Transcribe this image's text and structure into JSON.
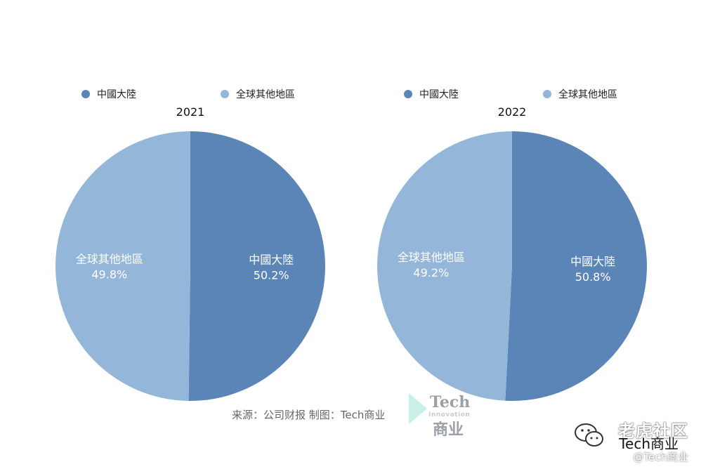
{
  "colors": {
    "mainland": "#5b84b7",
    "rest": "#94b6d8"
  },
  "chart_data": [
    {
      "type": "pie",
      "title": "2021",
      "legend": [
        "中國大陸",
        "全球其他地區"
      ],
      "slices": [
        {
          "label": "中國大陸",
          "value": 50.2,
          "display": "50.2%"
        },
        {
          "label": "全球其他地區",
          "value": 49.8,
          "display": "49.8%"
        }
      ]
    },
    {
      "type": "pie",
      "title": "2022",
      "legend": [
        "中國大陸",
        "全球其他地區"
      ],
      "slices": [
        {
          "label": "中國大陸",
          "value": 50.8,
          "display": "50.8%"
        },
        {
          "label": "全球其他地區",
          "value": 49.2,
          "display": "49.2%"
        }
      ]
    }
  ],
  "source": "来源：公司财报 制图：Tech商业",
  "watermark": {
    "logo_title": "Tech",
    "logo_subtitle": "Innovation",
    "logo_bottom": "商业",
    "forum": "老虎社区",
    "account": "Tech商业",
    "handle": "@Tech商业"
  },
  "icons": {
    "wechat": "wechat-icon",
    "arrow": "arrow-icon"
  }
}
